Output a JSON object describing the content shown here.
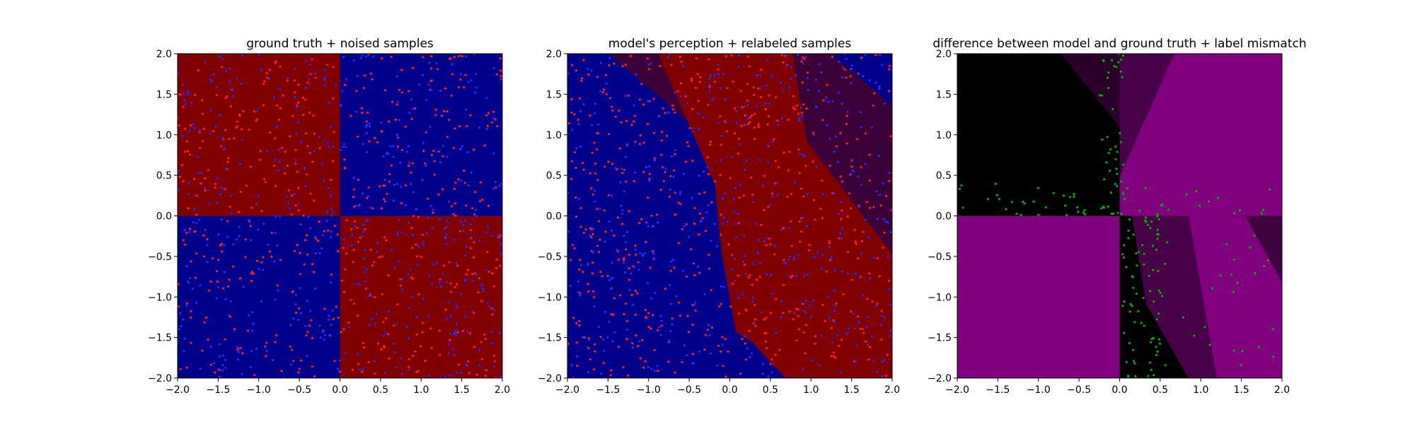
{
  "chart_data": [
    {
      "type": "scatter",
      "title": "ground truth + noised samples",
      "xlabel": "",
      "ylabel": "",
      "xlim": [
        -2.0,
        2.0
      ],
      "ylim": [
        -2.0,
        2.0
      ],
      "xticks": [
        "−2.0",
        "−1.5",
        "−1.0",
        "−0.5",
        "0.0",
        "0.5",
        "1.0",
        "1.5",
        "2.0"
      ],
      "yticks": [
        "−2.0",
        "−1.5",
        "−1.0",
        "−0.5",
        "0.0",
        "0.5",
        "1.0",
        "1.5",
        "2.0"
      ],
      "background": "XOR quadrant map: red for x<0,y>0 and x>0,y<0; blue for x>0,y>0 and x<0,y<0",
      "colors": {
        "red_region": "#800000",
        "blue_region": "#00008b",
        "red_points": "#ff2020",
        "blue_points": "#2a2aff"
      },
      "series": [
        {
          "color": "#ff2020",
          "sample_count": 520
        },
        {
          "color": "#2a2aff",
          "sample_count": 480
        }
      ],
      "grid": false
    },
    {
      "type": "scatter",
      "title": "model's perception + relabeled samples",
      "xlabel": "",
      "ylabel": "",
      "xlim": [
        -2.0,
        2.0
      ],
      "ylim": [
        -2.0,
        2.0
      ],
      "xticks": [
        "−2.0",
        "−1.5",
        "−1.0",
        "−0.5",
        "0.0",
        "0.5",
        "1.0",
        "1.5",
        "2.0"
      ],
      "yticks": [
        "−2.0",
        "−1.5",
        "−1.0",
        "−0.5",
        "0.0",
        "0.5",
        "1.0",
        "1.5",
        "2.0"
      ],
      "background": "model decision map: smooth diagonal red band from upper-center to lower-right, blue elsewhere",
      "colors": {
        "red_region": "#800000",
        "blue_region": "#00008b",
        "red_points": "#ff2020",
        "blue_points": "#2a2aff"
      },
      "series": [
        {
          "color": "#ff2020",
          "sample_count": 560
        },
        {
          "color": "#2a2aff",
          "sample_count": 440
        }
      ],
      "grid": false
    },
    {
      "type": "scatter",
      "title": "difference between model and ground truth + label mismatch",
      "xlabel": "",
      "ylabel": "",
      "xlim": [
        -2.0,
        2.0
      ],
      "ylim": [
        -2.0,
        2.0
      ],
      "xticks": [
        "−2.0",
        "−1.5",
        "−1.0",
        "−0.5",
        "0.0",
        "0.5",
        "1.0",
        "1.5",
        "2.0"
      ],
      "yticks": [
        "−2.0",
        "−1.5",
        "−1.0",
        "−0.5",
        "0.0",
        "0.5",
        "1.0",
        "1.5",
        "2.0"
      ],
      "background": "difference map: magenta/purple where model and truth disagree, black where they agree",
      "colors": {
        "difference": "#800080",
        "agreement": "#000000",
        "mismatch_points": "#00b000"
      },
      "series": [
        {
          "color": "#00b000",
          "sample_count": 190
        }
      ],
      "grid": false
    }
  ]
}
